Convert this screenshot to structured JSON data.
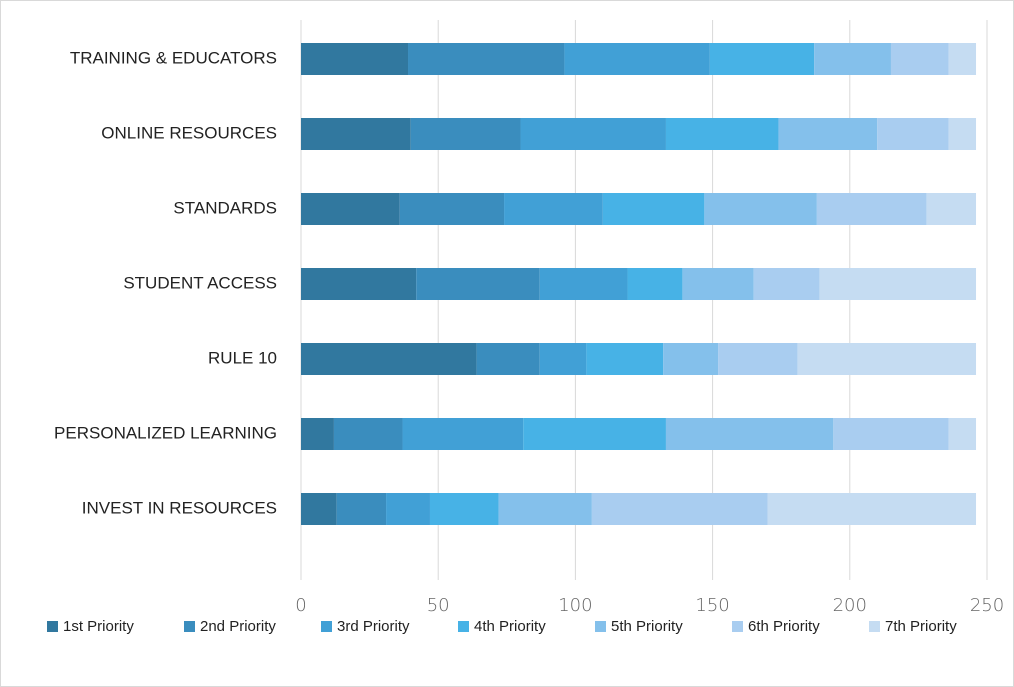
{
  "chart_data": {
    "type": "stacked_barh",
    "categories": [
      "TRAINING & EDUCATORS",
      "ONLINE RESOURCES",
      "STANDARDS",
      "STUDENT ACCESS",
      "RULE 10",
      "PERSONALIZED LEARNING",
      "INVEST IN RESOURCES"
    ],
    "series": [
      {
        "name": "1st Priority",
        "color": "#31789f",
        "values": [
          39,
          40,
          36,
          42,
          64,
          12,
          13
        ]
      },
      {
        "name": "2nd Priority",
        "color": "#3a8dbe",
        "values": [
          57,
          40,
          38,
          45,
          23,
          25,
          18
        ]
      },
      {
        "name": "3rd Priority",
        "color": "#41a0d6",
        "values": [
          53,
          53,
          36,
          32,
          17,
          44,
          16
        ]
      },
      {
        "name": "4th Priority",
        "color": "#47b2e6",
        "values": [
          38,
          41,
          37,
          20,
          28,
          52,
          25
        ]
      },
      {
        "name": "5th Priority",
        "color": "#84c0eb",
        "values": [
          28,
          36,
          41,
          26,
          20,
          61,
          34
        ]
      },
      {
        "name": "6th Priority",
        "color": "#a9cdf0",
        "values": [
          21,
          26,
          40,
          24,
          29,
          42,
          64
        ]
      },
      {
        "name": "7th Priority",
        "color": "#c5dcf2",
        "values": [
          10,
          10,
          18,
          57,
          65,
          10,
          76
        ]
      }
    ],
    "xlim": [
      0,
      250
    ],
    "xticks": [
      0,
      50,
      100,
      150,
      200,
      250
    ],
    "grid": true,
    "legend": "bottom"
  }
}
